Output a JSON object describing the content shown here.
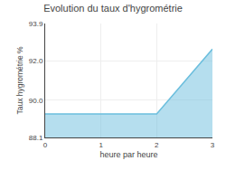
{
  "chart_data": {
    "type": "area",
    "title": "Evolution du taux d'hygrométrie",
    "x_label": "heure par heure",
    "y_label": "Taux hygrométrie %",
    "x": [
      0,
      2.0,
      3.0
    ],
    "series": [
      {
        "name": "Taux hygrométrie %",
        "color": "#6bbedd",
        "values": [
          89.3,
          89.3,
          92.6
        ]
      }
    ],
    "xlim": [
      0,
      3
    ],
    "ylim": [
      88.1,
      93.9
    ],
    "xticks": [
      0,
      1,
      2,
      3
    ],
    "yticks": [
      88.1,
      {
        "value": 90.0,
        "label": "90.0"
      },
      {
        "value": 92.0,
        "label": "92.0"
      },
      93.9
    ],
    "grid": true
  }
}
